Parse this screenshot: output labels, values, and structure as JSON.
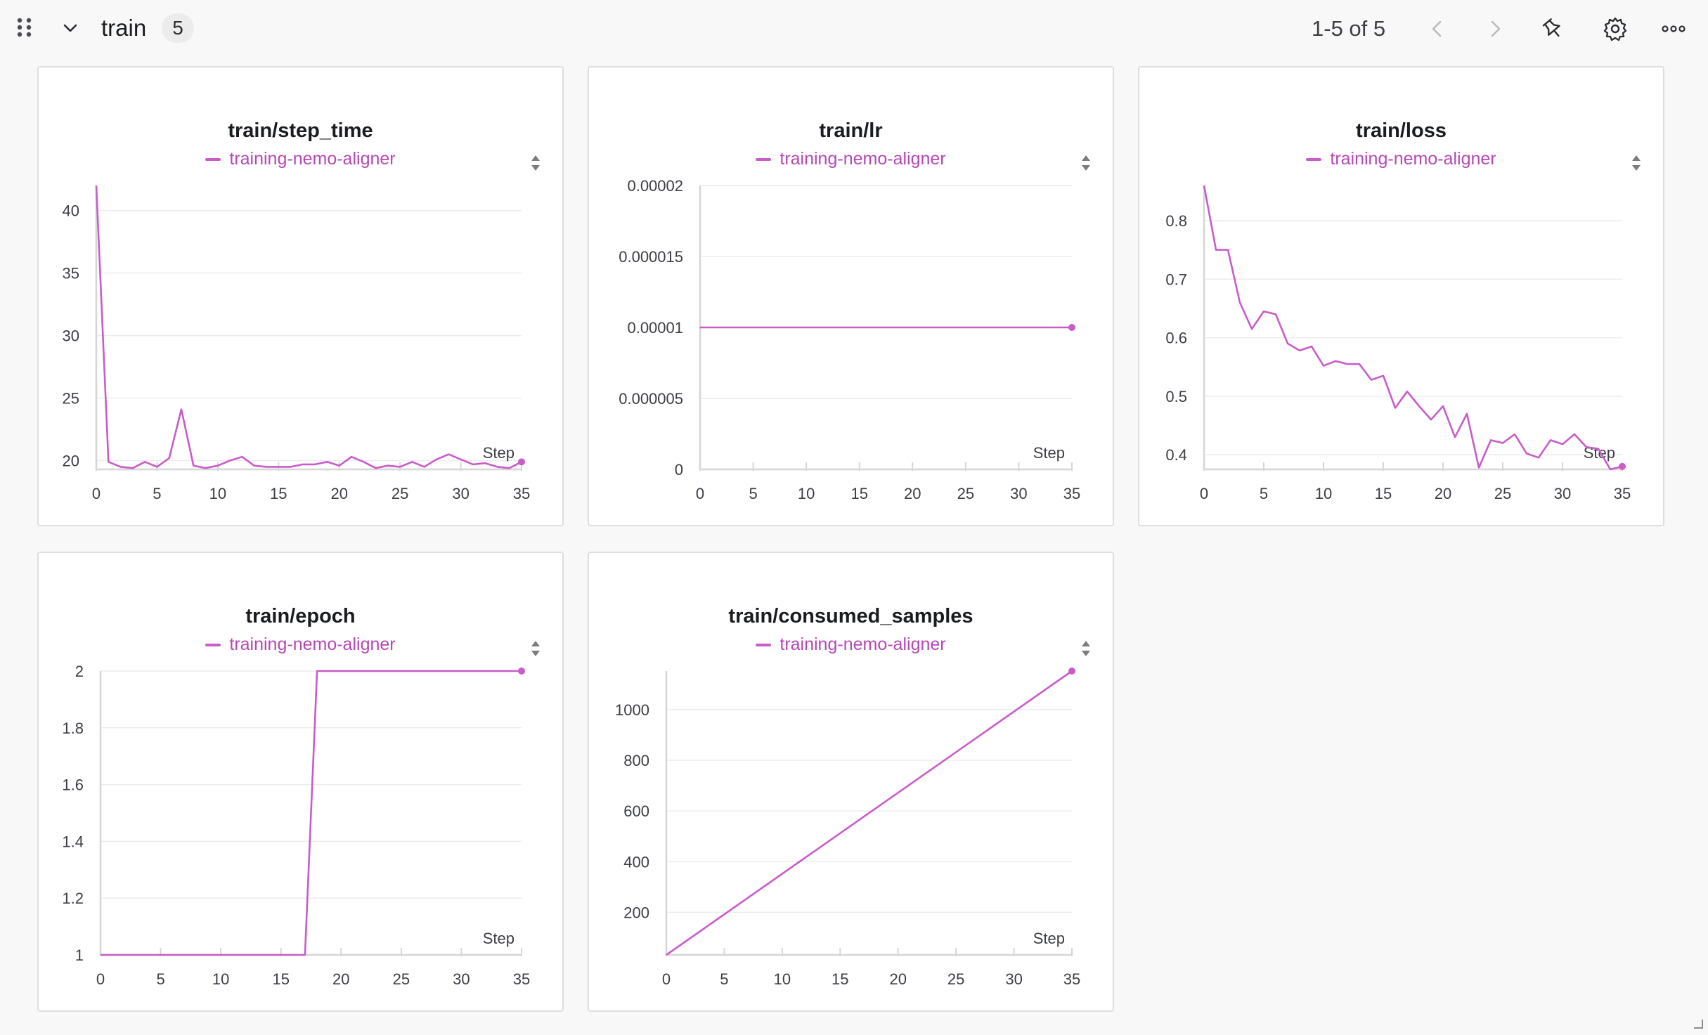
{
  "header": {
    "section_title": "train",
    "count": "5",
    "pagination": "1-5 of 5",
    "icons": [
      "drag-handle-icon",
      "chevron-down-icon",
      "chevron-left-icon",
      "chevron-right-icon",
      "pin-icon",
      "gear-icon",
      "more-horizontal-icon"
    ]
  },
  "colors": {
    "series": "#c95cc9",
    "grid": "#ececec",
    "axis": "#d6d6d6",
    "tick": "#3c3e43"
  },
  "panels": [
    {
      "title": "train/step_time",
      "legend": "training-nemo-aligner",
      "xlabel": "Step"
    },
    {
      "title": "train/lr",
      "legend": "training-nemo-aligner",
      "xlabel": "Step"
    },
    {
      "title": "train/loss",
      "legend": "training-nemo-aligner",
      "xlabel": "Step"
    },
    {
      "title": "train/epoch",
      "legend": "training-nemo-aligner",
      "xlabel": "Step"
    },
    {
      "title": "train/consumed_samples",
      "legend": "training-nemo-aligner",
      "xlabel": "Step"
    }
  ],
  "chart_data": [
    {
      "type": "line",
      "title": "train/step_time",
      "xlabel": "Step",
      "ylabel": "",
      "xlim": [
        0,
        35
      ],
      "ylim": [
        19.3,
        42
      ],
      "xticks": [
        0,
        5,
        10,
        15,
        20,
        25,
        30,
        35
      ],
      "yticks": [
        20,
        25,
        30,
        35,
        40
      ],
      "ytick_labels": [
        "20",
        "25",
        "30",
        "35",
        "40"
      ],
      "series": [
        {
          "name": "training-nemo-aligner",
          "x": [
            0,
            1,
            2,
            3,
            4,
            5,
            6,
            7,
            8,
            9,
            10,
            11,
            12,
            13,
            14,
            15,
            16,
            17,
            18,
            19,
            20,
            21,
            22,
            23,
            24,
            25,
            26,
            27,
            28,
            29,
            30,
            31,
            32,
            33,
            34,
            35
          ],
          "y": [
            42,
            19.9,
            19.5,
            19.4,
            19.9,
            19.5,
            20.2,
            24.1,
            19.6,
            19.4,
            19.6,
            20.0,
            20.3,
            19.6,
            19.5,
            19.5,
            19.5,
            19.7,
            19.7,
            19.9,
            19.6,
            20.3,
            19.9,
            19.4,
            19.6,
            19.5,
            19.9,
            19.5,
            20.1,
            20.5,
            20.1,
            19.7,
            19.8,
            19.5,
            19.4,
            19.9
          ]
        }
      ]
    },
    {
      "type": "line",
      "title": "train/lr",
      "xlabel": "Step",
      "ylabel": "",
      "xlim": [
        0,
        35
      ],
      "ylim": [
        0,
        2e-05
      ],
      "xticks": [
        0,
        5,
        10,
        15,
        20,
        25,
        30,
        35
      ],
      "yticks": [
        0,
        5e-06,
        1e-05,
        1.5e-05,
        2e-05
      ],
      "ytick_labels": [
        "0",
        "0.000005",
        "0.00001",
        "0.000015",
        "0.00002"
      ],
      "series": [
        {
          "name": "training-nemo-aligner",
          "x": [
            0,
            35
          ],
          "y": [
            1e-05,
            1e-05
          ]
        }
      ]
    },
    {
      "type": "line",
      "title": "train/loss",
      "xlabel": "Step",
      "ylabel": "",
      "xlim": [
        0,
        35
      ],
      "ylim": [
        0.375,
        0.86
      ],
      "xticks": [
        0,
        5,
        10,
        15,
        20,
        25,
        30,
        35
      ],
      "yticks": [
        0.4,
        0.5,
        0.6,
        0.7,
        0.8
      ],
      "ytick_labels": [
        "0.4",
        "0.5",
        "0.6",
        "0.7",
        "0.8"
      ],
      "series": [
        {
          "name": "training-nemo-aligner",
          "x": [
            0,
            1,
            2,
            3,
            4,
            5,
            6,
            7,
            8,
            9,
            10,
            11,
            12,
            13,
            14,
            15,
            16,
            17,
            18,
            19,
            20,
            21,
            22,
            23,
            24,
            25,
            26,
            27,
            28,
            29,
            30,
            31,
            32,
            33,
            34,
            35
          ],
          "y": [
            0.86,
            0.75,
            0.75,
            0.66,
            0.615,
            0.645,
            0.64,
            0.59,
            0.578,
            0.585,
            0.552,
            0.56,
            0.555,
            0.555,
            0.528,
            0.535,
            0.48,
            0.508,
            0.483,
            0.46,
            0.483,
            0.43,
            0.47,
            0.378,
            0.425,
            0.42,
            0.435,
            0.402,
            0.395,
            0.425,
            0.418,
            0.435,
            0.413,
            0.41,
            0.375,
            0.38
          ]
        }
      ]
    },
    {
      "type": "line",
      "title": "train/epoch",
      "xlabel": "Step",
      "ylabel": "",
      "xlim": [
        0,
        35
      ],
      "ylim": [
        1,
        2
      ],
      "xticks": [
        0,
        5,
        10,
        15,
        20,
        25,
        30,
        35
      ],
      "yticks": [
        1,
        1.2,
        1.4,
        1.6,
        1.8,
        2
      ],
      "ytick_labels": [
        "1",
        "1.2",
        "1.4",
        "1.6",
        "1.8",
        "2"
      ],
      "series": [
        {
          "name": "training-nemo-aligner",
          "x": [
            0,
            17,
            18,
            35
          ],
          "y": [
            1,
            1,
            2,
            2
          ]
        }
      ]
    },
    {
      "type": "line",
      "title": "train/consumed_samples",
      "xlabel": "Step",
      "ylabel": "",
      "xlim": [
        0,
        35
      ],
      "ylim": [
        32,
        1152
      ],
      "xticks": [
        0,
        5,
        10,
        15,
        20,
        25,
        30,
        35
      ],
      "yticks": [
        200,
        400,
        600,
        800,
        1000
      ],
      "ytick_labels": [
        "200",
        "400",
        "600",
        "800",
        "1000"
      ],
      "series": [
        {
          "name": "training-nemo-aligner",
          "x": [
            0,
            35
          ],
          "y": [
            32,
            1152
          ]
        }
      ]
    }
  ]
}
